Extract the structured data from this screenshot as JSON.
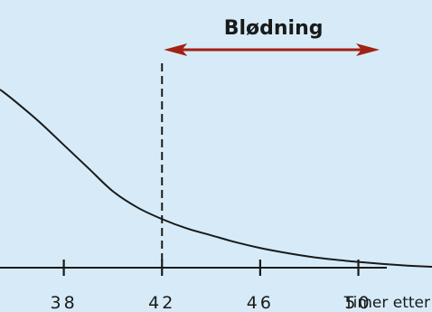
{
  "chart_data": {
    "type": "line",
    "title": "",
    "xlabel": "Timer etter",
    "ylabel": "",
    "x_ticks": [
      38,
      42,
      46,
      50
    ],
    "xlim": [
      35.4,
      53.0
    ],
    "ylim": [
      0,
      1
    ],
    "grid": false,
    "series": [
      {
        "x": [
          35.4,
          36,
          37,
          38,
          39,
          40,
          41,
          42,
          43,
          44,
          45,
          46,
          47,
          48,
          49,
          50,
          51,
          52,
          53
        ],
        "y": [
          0.77,
          0.72,
          0.63,
          0.53,
          0.43,
          0.33,
          0.26,
          0.21,
          0.17,
          0.14,
          0.11,
          0.085,
          0.065,
          0.048,
          0.035,
          0.025,
          0.016,
          0.009,
          0.004
        ]
      }
    ],
    "reference_line": {
      "x": 42,
      "style": "dashed"
    },
    "annotation": {
      "label": "Blødning",
      "x_start": 42,
      "x_end": 53.0,
      "y": 0.97,
      "color": "#a32015"
    },
    "colors": {
      "background": "#d6ebf7",
      "curve": "#1a1a1a",
      "axis": "#1a1a1a",
      "arrow": "#a32015"
    }
  }
}
